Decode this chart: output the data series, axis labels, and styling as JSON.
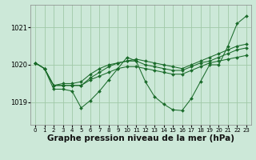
{
  "background_color": "#cce8d8",
  "grid_color": "#a0c8a8",
  "line_color": "#1a6b2a",
  "marker_color": "#1a6b2a",
  "xlabel": "Graphe pression niveau de la mer (hPa)",
  "xlabel_fontsize": 7.5,
  "yticks": [
    1019,
    1020,
    1021
  ],
  "ylim": [
    1018.4,
    1021.6
  ],
  "xlim": [
    -0.5,
    23.5
  ],
  "xticks": [
    0,
    1,
    2,
    3,
    4,
    5,
    6,
    7,
    8,
    9,
    10,
    11,
    12,
    13,
    14,
    15,
    16,
    17,
    18,
    19,
    20,
    21,
    22,
    23
  ],
  "series": [
    [
      1020.05,
      1019.9,
      1019.35,
      1019.35,
      1019.3,
      1018.85,
      1019.05,
      1019.3,
      1019.6,
      1019.9,
      1020.2,
      1020.1,
      1019.55,
      1019.15,
      1018.95,
      1018.8,
      1018.78,
      1019.1,
      1019.55,
      1020.0,
      1020.0,
      1020.5,
      1021.1,
      1021.3
    ],
    [
      1020.05,
      1019.9,
      1019.45,
      1019.45,
      1019.45,
      1019.45,
      1019.6,
      1019.7,
      1019.8,
      1019.9,
      1019.95,
      1019.95,
      1019.9,
      1019.85,
      1019.8,
      1019.75,
      1019.75,
      1019.85,
      1019.95,
      1020.05,
      1020.1,
      1020.15,
      1020.2,
      1020.25
    ],
    [
      1020.05,
      1019.9,
      1019.45,
      1019.45,
      1019.45,
      1019.45,
      1019.65,
      1019.8,
      1019.95,
      1020.05,
      1020.1,
      1020.1,
      1020.0,
      1019.95,
      1019.9,
      1019.85,
      1019.85,
      1019.95,
      1020.05,
      1020.1,
      1020.2,
      1020.3,
      1020.4,
      1020.45
    ],
    [
      1020.05,
      1019.9,
      1019.45,
      1019.5,
      1019.5,
      1019.55,
      1019.75,
      1019.9,
      1020.0,
      1020.05,
      1020.1,
      1020.15,
      1020.1,
      1020.05,
      1020.0,
      1019.95,
      1019.9,
      1020.0,
      1020.1,
      1020.2,
      1020.3,
      1020.4,
      1020.5,
      1020.55
    ]
  ]
}
